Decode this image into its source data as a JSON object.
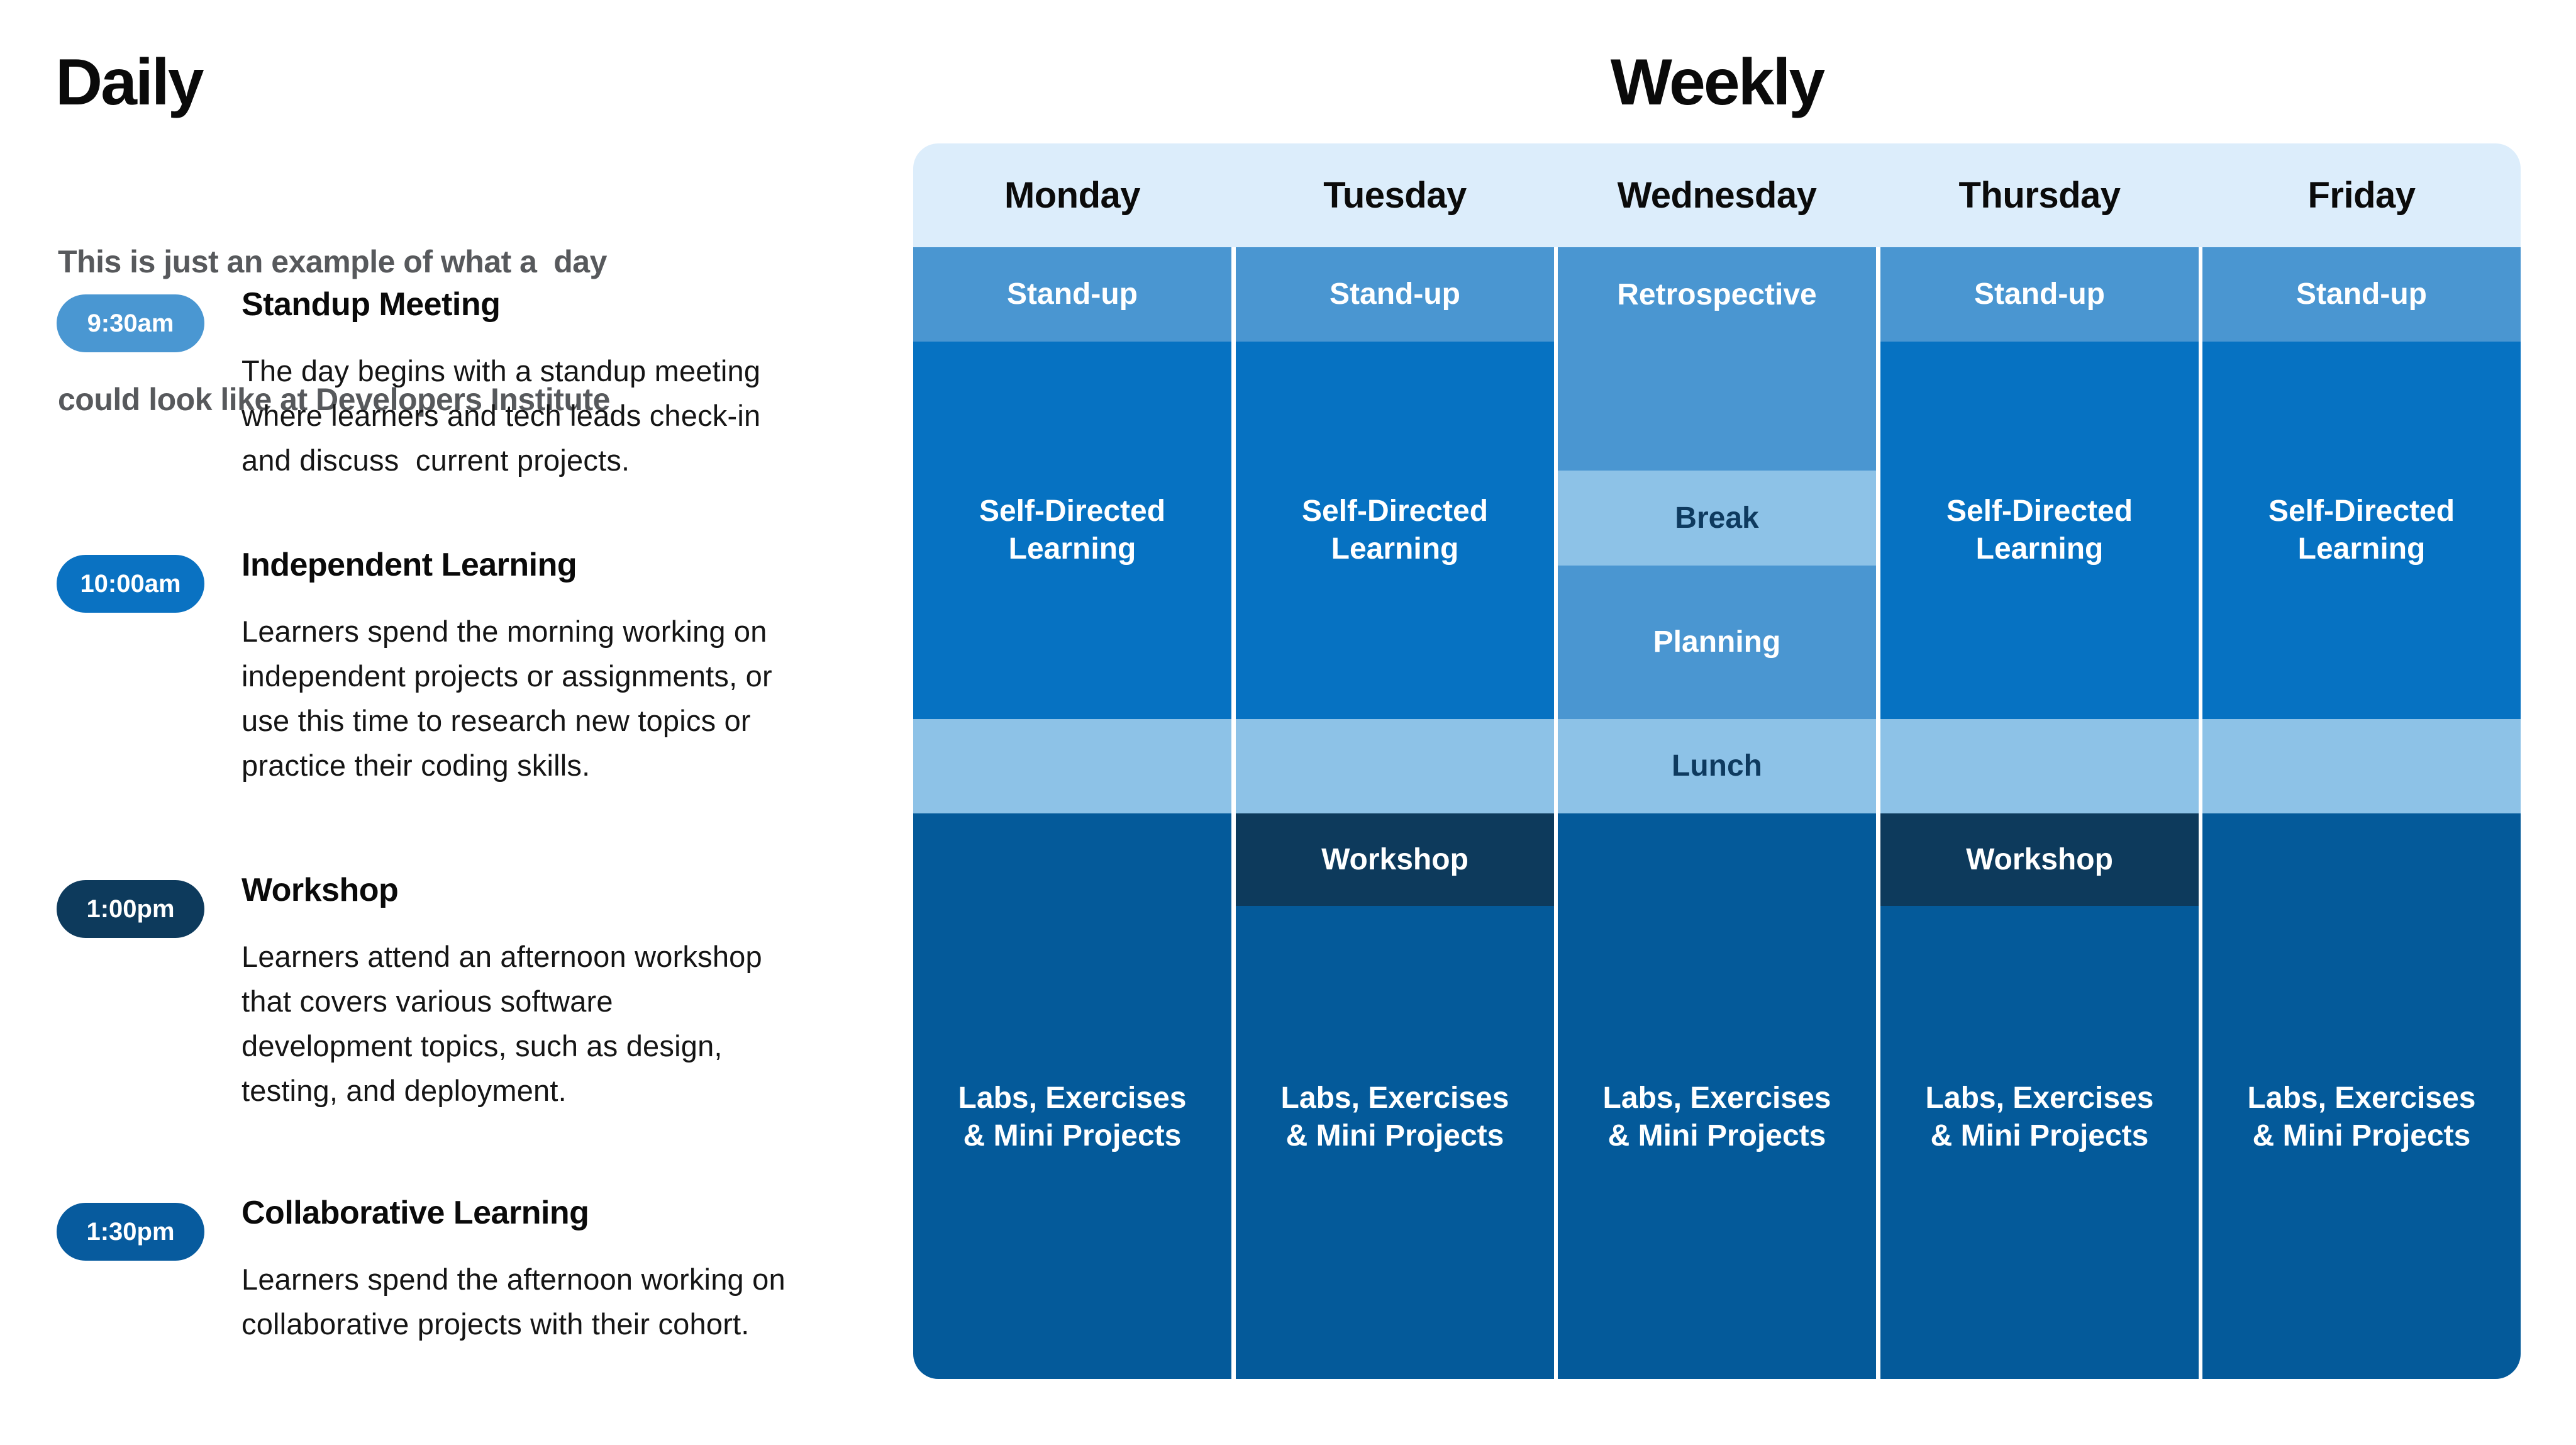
{
  "daily": {
    "title": "Daily",
    "subtitle_lines": [
      "This is just an example of what a  day",
      "could look like at Developers Institute"
    ],
    "items": [
      {
        "time": "9:30am",
        "pill_color": "#4a97d2",
        "heading": "Standup Meeting",
        "lines": [
          "The day begins with a standup meeting",
          "where learners and tech leads check-in",
          "and discuss  current projects."
        ]
      },
      {
        "time": "10:00am",
        "pill_color": "#0a72c2",
        "heading": "Independent Learning",
        "lines": [
          "Learners spend the morning working on",
          "independent projects or assignments, or",
          "use this time to research new topics or",
          "practice their coding skills."
        ]
      },
      {
        "time": "1:00pm",
        "pill_color": "#0d3a5c",
        "heading": "Workshop",
        "lines": [
          "Learners attend an afternoon workshop",
          "that covers various software",
          "development topics, such as design,",
          "testing, and deployment."
        ]
      },
      {
        "time": "1:30pm",
        "pill_color": "#075b9e",
        "heading": "Collaborative Learning",
        "lines": [
          "Learners spend the afternoon working on",
          "collaborative projects with their cohort."
        ]
      }
    ]
  },
  "weekly": {
    "title": "Weekly",
    "days": [
      "Monday",
      "Tuesday",
      "Wednesday",
      "Thursday",
      "Friday"
    ],
    "columns": [
      {
        "day": "Monday",
        "cells": {
          "standup": "Stand-up",
          "selfdirected": "Self-Directed\nLearning",
          "lunch": "",
          "labs": "Labs, Exercises\n& Mini Projects"
        }
      },
      {
        "day": "Tuesday",
        "cells": {
          "standup": "Stand-up",
          "selfdirected": "Self-Directed\nLearning",
          "lunch": "",
          "workshop": "Workshop",
          "labs": "Labs, Exercises\n& Mini Projects"
        }
      },
      {
        "day": "Wednesday",
        "cells": {
          "retrospective": "Retrospective",
          "break": "Break",
          "planning": "Planning",
          "lunch": "Lunch",
          "labs": "Labs, Exercises\n& Mini Projects"
        }
      },
      {
        "day": "Thursday",
        "cells": {
          "standup": "Stand-up",
          "selfdirected": "Self-Directed\nLearning",
          "lunch": "",
          "workshop": "Workshop",
          "labs": "Labs, Exercises\n& Mini Projects"
        }
      },
      {
        "day": "Friday",
        "cells": {
          "standup": "Stand-up",
          "selfdirected": "Self-Directed\nLearning",
          "lunch": "",
          "labs": "Labs, Exercises\n& Mini Projects"
        }
      }
    ],
    "colors": {
      "header_bg": "#dcedfb",
      "medium_blue": "#4a96d1",
      "bright_blue": "#0672c2",
      "light_blue": "#8dc2e7",
      "navy": "#0d3a5c",
      "deep_blue": "#045a9a",
      "dark_label_text": "#0e3a5f"
    }
  }
}
